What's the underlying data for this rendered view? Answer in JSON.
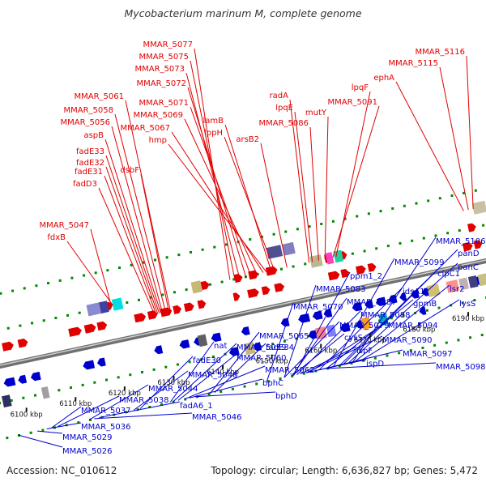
{
  "title": "Mycobacterium marinum M, complete genome",
  "footer": {
    "accession": "Accession: NC_010612",
    "summary": "Topology: circular; Length: 6,636,827 bp; Genes: 5,472"
  },
  "colors": {
    "forward": "#e00000",
    "reverse": "#0000cc",
    "backbone": "#888888",
    "dots": "#008800"
  },
  "ticks": [
    "6100 kbp",
    "6110 kbp",
    "6120 kbp",
    "6130 kbp",
    "6140 kbp",
    "6150 kbp",
    "6160 kbp",
    "6170 kbp",
    "6180 kbp",
    "6190 kbp"
  ],
  "forward_labels": [
    "MMAR_5077",
    "MMAR_5075",
    "MMAR_5073",
    "MMAR_5072",
    "MMAR_5071",
    "MMAR_5069",
    "MMAR_5067",
    "hmp",
    "MMAR_5061",
    "MMAR_5058",
    "MMAR_5056",
    "aspB",
    "fadE33",
    "fadE32",
    "fadE31",
    "fadD3",
    "dsbF",
    "MMAR_5047",
    "fdxB",
    "lamB",
    "lppH",
    "arsB2",
    "radA",
    "lpqE",
    "MMAR_5086",
    "mutY",
    "MMAR_5091",
    "lpqF",
    "ephA",
    "MMAR_5115",
    "MMAR_5116"
  ],
  "reverse_labels": [
    "MMAR_5026",
    "MMAR_5029",
    "MMAR_5036",
    "MMAR_5037",
    "MMAR_5038",
    "MMAR_5044",
    "MMAR_5046",
    "fadA6_1",
    "MMAR_5048",
    "fadE30",
    "nat",
    "MMAR_5059",
    "MMAR_5060",
    "MMAR_5062",
    "bphC",
    "bphD",
    "MMAR_5065",
    "fadE34",
    "MMAR_5070",
    "MMAR_5079",
    "MMAR_5083",
    "cysS",
    "ispF",
    "ispD",
    "MMAR_5087",
    "MMAR_5088",
    "MMAR_5090",
    "MMAR_5094",
    "ppm1_2",
    "idsA1",
    "gpmB",
    "MMAR_5099",
    "clpC1",
    "panD",
    "panC",
    "MMAR_5106",
    "lsr2",
    "lysS",
    "MMAR_5097",
    "MMAR_5098"
  ]
}
